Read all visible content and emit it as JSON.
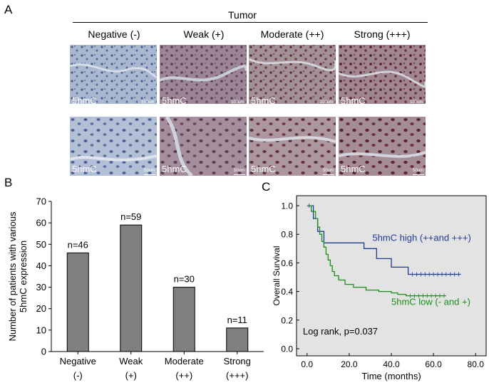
{
  "figure": {
    "panel_a": {
      "letter": "A",
      "title": "Tumor",
      "columns": [
        "Negative (-)",
        "Weak (+)",
        "Moderate (++)",
        "Strong (+++)"
      ],
      "row_top": {
        "stain_label": "5hmC",
        "scale_label": "100um"
      },
      "row_bottom": {
        "stain_label": "5hmC",
        "scale_label": "50um"
      }
    },
    "panel_b": {
      "letter": "B"
    },
    "panel_c": {
      "letter": "C"
    }
  },
  "chart_data": [
    {
      "type": "bar",
      "ylabel": "Number of patients with various\n5hmC expression",
      "ylim": [
        0,
        70
      ],
      "yticks": [
        0,
        10,
        20,
        30,
        40,
        50,
        60,
        70
      ],
      "categories": [
        [
          "Negative",
          "(-)"
        ],
        [
          "Weak",
          "(+)"
        ],
        [
          "Moderate",
          "(++)"
        ],
        [
          "Strong",
          "(+++)"
        ]
      ],
      "values": [
        46,
        59,
        30,
        11
      ],
      "data_labels": [
        "n=46",
        "n=59",
        "n=30",
        "n=11"
      ],
      "bar_color": "#7f7f7f"
    },
    {
      "type": "line",
      "xlabel": "Time (months)",
      "ylabel": "Overall Survival",
      "xlim": [
        -5,
        85
      ],
      "ylim": [
        -0.05,
        1.07
      ],
      "xticks": [
        "0.0",
        "20.0",
        "40.0",
        "60.0",
        "80.0"
      ],
      "yticks": [
        "0.0",
        "0.2",
        "0.4",
        "0.6",
        "0.8",
        "1.0"
      ],
      "background": "#e3e3e3",
      "annotation": "Log rank, p=0.037",
      "series": [
        {
          "name": "5hmC high (++and +++)",
          "color": "#1f3a93",
          "x": [
            0,
            3,
            3,
            5,
            5,
            8,
            8,
            27,
            27,
            33,
            33,
            40,
            40,
            48,
            48,
            73
          ],
          "y": [
            1.0,
            1.0,
            0.91,
            0.91,
            0.82,
            0.82,
            0.74,
            0.74,
            0.7,
            0.7,
            0.63,
            0.63,
            0.57,
            0.57,
            0.52,
            0.52
          ]
        },
        {
          "name": "5hmC low (- and +)",
          "color": "#1a8f1a",
          "x": [
            0,
            2,
            2,
            4,
            4,
            5,
            5,
            6,
            6,
            7,
            7,
            8,
            8,
            9,
            9,
            10,
            10,
            11,
            11,
            12,
            12,
            13,
            13,
            15,
            15,
            18,
            18,
            22,
            22,
            28,
            28,
            34,
            34,
            40,
            40,
            43,
            43,
            47,
            47,
            66
          ],
          "y": [
            1.0,
            1.0,
            0.96,
            0.96,
            0.91,
            0.91,
            0.85,
            0.85,
            0.8,
            0.8,
            0.75,
            0.75,
            0.71,
            0.71,
            0.66,
            0.66,
            0.62,
            0.62,
            0.58,
            0.58,
            0.54,
            0.54,
            0.51,
            0.51,
            0.48,
            0.48,
            0.45,
            0.45,
            0.43,
            0.43,
            0.41,
            0.41,
            0.4,
            0.4,
            0.39,
            0.39,
            0.38,
            0.38,
            0.37,
            0.37
          ]
        }
      ]
    }
  ]
}
